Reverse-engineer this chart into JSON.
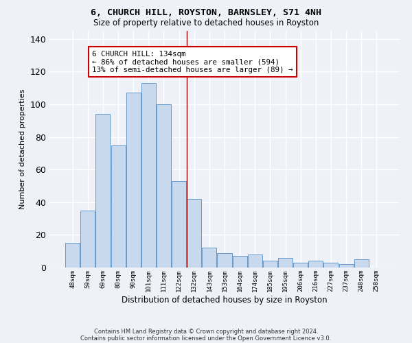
{
  "title1": "6, CHURCH HILL, ROYSTON, BARNSLEY, S71 4NH",
  "title2": "Size of property relative to detached houses in Royston",
  "xlabel": "Distribution of detached houses by size in Royston",
  "ylabel": "Number of detached properties",
  "categories": [
    "48sqm",
    "59sqm",
    "69sqm",
    "80sqm",
    "90sqm",
    "101sqm",
    "111sqm",
    "122sqm",
    "132sqm",
    "143sqm",
    "153sqm",
    "164sqm",
    "174sqm",
    "185sqm",
    "195sqm",
    "206sqm",
    "216sqm",
    "227sqm",
    "237sqm",
    "248sqm",
    "258sqm"
  ],
  "values": [
    15,
    35,
    94,
    75,
    107,
    113,
    100,
    53,
    42,
    12,
    9,
    7,
    8,
    4,
    6,
    3,
    4,
    3,
    2,
    5,
    0
  ],
  "bar_color": "#c8d9ee",
  "bar_edge_color": "#6699cc",
  "vline_x": 7.5,
  "vline_color": "#990000",
  "annotation_text": "6 CHURCH HILL: 134sqm\n← 86% of detached houses are smaller (594)\n13% of semi-detached houses are larger (89) →",
  "annotation_box_color": "#ffffff",
  "annotation_box_edge": "#cc0000",
  "ylim": [
    0,
    145
  ],
  "yticks": [
    0,
    20,
    40,
    60,
    80,
    100,
    120,
    140
  ],
  "footnote1": "Contains HM Land Registry data © Crown copyright and database right 2024.",
  "footnote2": "Contains public sector information licensed under the Open Government Licence v3.0.",
  "bg_color": "#eef2f8",
  "grid_color": "#ffffff"
}
